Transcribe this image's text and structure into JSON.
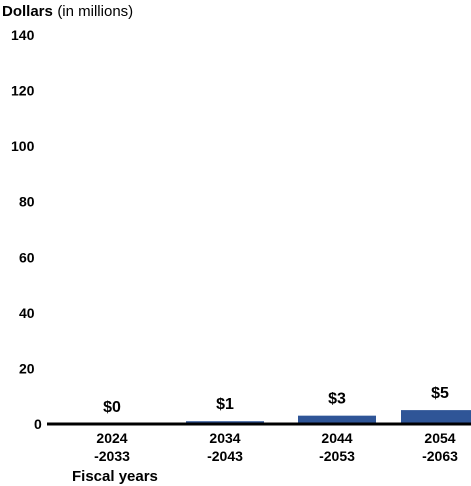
{
  "chart_data": {
    "type": "bar",
    "ylabel": "Dollars",
    "ylabel_unit": "(in millions)",
    "xlabel": "Fiscal years",
    "ylim": [
      0,
      140
    ],
    "yticks": [
      0,
      20,
      40,
      60,
      80,
      100,
      120,
      140
    ],
    "categories": [
      [
        "2024",
        "-2033"
      ],
      [
        "2034",
        "-2043"
      ],
      [
        "2044",
        "-2053"
      ],
      [
        "2054",
        "-2063"
      ]
    ],
    "values": [
      0,
      1,
      3,
      5
    ],
    "data_labels": [
      "$0",
      "$1",
      "$3",
      "$5"
    ],
    "bar_color": "#2f5597",
    "grid": false
  }
}
